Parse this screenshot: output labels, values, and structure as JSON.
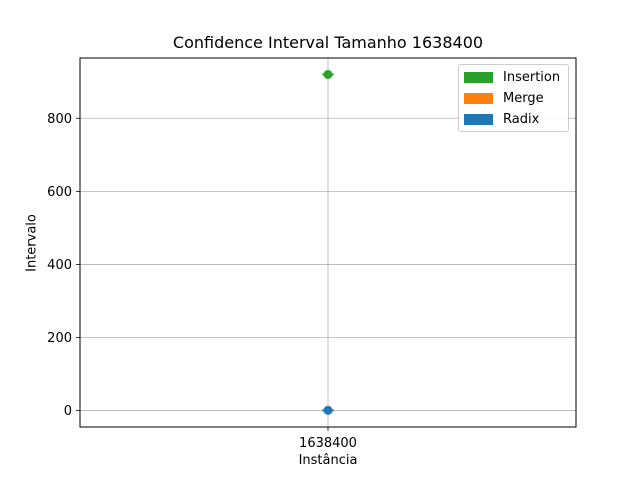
{
  "chart_data": {
    "type": "scatter",
    "title": "Confidence Interval Tamanho 1638400",
    "xlabel": "Instância",
    "ylabel": "Intervalo",
    "categories": [
      "1638400"
    ],
    "ylim": [
      -45,
      965
    ],
    "yticks": [
      0,
      200,
      400,
      600,
      800
    ],
    "grid": true,
    "legend_position": "top-right",
    "series": [
      {
        "name": "Insertion",
        "color": "#2ca02c",
        "values": [
          920
        ],
        "ci": [
          [
            917,
            923
          ]
        ]
      },
      {
        "name": "Merge",
        "color": "#ff7f0e",
        "values": [
          1
        ],
        "ci": [
          [
            0,
            2
          ]
        ]
      },
      {
        "name": "Radix",
        "color": "#1f77b4",
        "values": [
          0.5
        ],
        "ci": [
          [
            0,
            1
          ]
        ]
      }
    ]
  }
}
